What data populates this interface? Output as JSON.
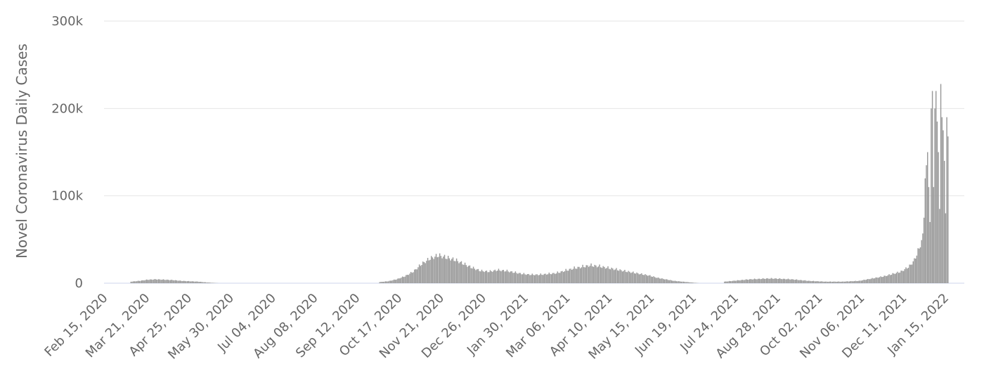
{
  "chart_data": {
    "type": "bar",
    "title": "",
    "ylabel": "Novel Coronavirus Daily Cases",
    "xlabel": "",
    "ylim": [
      0,
      300000
    ],
    "y_ticks": [
      {
        "value": 0,
        "label": "0"
      },
      {
        "value": 100000,
        "label": "100k"
      },
      {
        "value": 200000,
        "label": "200k"
      },
      {
        "value": 300000,
        "label": "300k"
      }
    ],
    "x_ticks": [
      "Feb 15, 2020",
      "Mar 21, 2020",
      "Apr 25, 2020",
      "May 30, 2020",
      "Jul 04, 2020",
      "Aug 08, 2020",
      "Sep 12, 2020",
      "Oct 17, 2020",
      "Nov 21, 2020",
      "Dec 26, 2020",
      "Jan 30, 2021",
      "Mar 06, 2021",
      "Apr 10, 2021",
      "May 15, 2021",
      "Jun 19, 2021",
      "Jul 24, 2021",
      "Aug 28, 2021",
      "Oct 02, 2021",
      "Nov 06, 2021",
      "Dec 11, 2021",
      "Jan 15, 2022"
    ],
    "x_start": "2020-02-15",
    "x_end": "2022-01-31",
    "grid": true,
    "color": "#999999",
    "series": [
      {
        "points": [
          [
            "2020-03-08",
            2000
          ],
          [
            "2020-03-15",
            3000
          ],
          [
            "2020-03-22",
            4500
          ],
          [
            "2020-03-29",
            5000
          ],
          [
            "2020-04-05",
            4500
          ],
          [
            "2020-04-12",
            4000
          ],
          [
            "2020-04-19",
            3000
          ],
          [
            "2020-04-26",
            2500
          ],
          [
            "2020-05-03",
            2000
          ],
          [
            "2020-05-10",
            1000
          ],
          [
            "2020-05-20",
            0
          ],
          [
            "2020-09-30",
            0
          ],
          [
            "2020-10-01",
            1500
          ],
          [
            "2020-10-08",
            2500
          ],
          [
            "2020-10-15",
            5000
          ],
          [
            "2020-10-22",
            9000
          ],
          [
            "2020-10-29",
            15000
          ],
          [
            "2020-11-05",
            25000
          ],
          [
            "2020-11-12",
            32000
          ],
          [
            "2020-11-19",
            36000
          ],
          [
            "2020-11-26",
            33000
          ],
          [
            "2020-12-03",
            30000
          ],
          [
            "2020-12-10",
            25000
          ],
          [
            "2020-12-17",
            20000
          ],
          [
            "2020-12-24",
            16000
          ],
          [
            "2020-12-31",
            15000
          ],
          [
            "2021-01-07",
            17000
          ],
          [
            "2021-01-14",
            16000
          ],
          [
            "2021-01-21",
            14000
          ],
          [
            "2021-01-28",
            12000
          ],
          [
            "2021-02-04",
            11000
          ],
          [
            "2021-02-11",
            11000
          ],
          [
            "2021-02-18",
            12000
          ],
          [
            "2021-02-25",
            13000
          ],
          [
            "2021-03-04",
            16000
          ],
          [
            "2021-03-11",
            19000
          ],
          [
            "2021-03-18",
            21000
          ],
          [
            "2021-03-25",
            23000
          ],
          [
            "2021-04-01",
            22000
          ],
          [
            "2021-04-08",
            20000
          ],
          [
            "2021-04-15",
            18000
          ],
          [
            "2021-04-22",
            16000
          ],
          [
            "2021-04-29",
            14000
          ],
          [
            "2021-05-06",
            12000
          ],
          [
            "2021-05-13",
            10000
          ],
          [
            "2021-05-20",
            7000
          ],
          [
            "2021-05-27",
            5000
          ],
          [
            "2021-06-03",
            3000
          ],
          [
            "2021-06-10",
            2000
          ],
          [
            "2021-06-17",
            1000
          ],
          [
            "2021-06-24",
            0
          ],
          [
            "2021-07-14",
            0
          ],
          [
            "2021-07-15",
            2000
          ],
          [
            "2021-07-22",
            3000
          ],
          [
            "2021-07-29",
            4000
          ],
          [
            "2021-08-05",
            5000
          ],
          [
            "2021-08-12",
            5500
          ],
          [
            "2021-08-19",
            6000
          ],
          [
            "2021-08-26",
            6000
          ],
          [
            "2021-09-02",
            5500
          ],
          [
            "2021-09-09",
            5000
          ],
          [
            "2021-09-16",
            4000
          ],
          [
            "2021-09-23",
            3000
          ],
          [
            "2021-09-30",
            2500
          ],
          [
            "2021-10-07",
            2000
          ],
          [
            "2021-10-14",
            2000
          ],
          [
            "2021-10-21",
            2000
          ],
          [
            "2021-10-28",
            2500
          ],
          [
            "2021-11-04",
            3000
          ],
          [
            "2021-11-11",
            5000
          ],
          [
            "2021-11-18",
            7000
          ],
          [
            "2021-11-25",
            9000
          ],
          [
            "2021-12-02",
            12000
          ],
          [
            "2021-12-09",
            15000
          ],
          [
            "2021-12-16",
            22000
          ],
          [
            "2021-12-20",
            30000
          ],
          [
            "2021-12-24",
            45000
          ],
          [
            "2021-12-27",
            60000
          ],
          [
            "2021-12-29",
            120000
          ],
          [
            "2021-12-31",
            150000
          ],
          [
            "2022-01-02",
            70000
          ],
          [
            "2022-01-03",
            200000
          ],
          [
            "2022-01-04",
            220000
          ],
          [
            "2022-01-05",
            110000
          ],
          [
            "2022-01-06",
            200000
          ],
          [
            "2022-01-07",
            220000
          ],
          [
            "2022-01-08",
            185000
          ],
          [
            "2022-01-09",
            150000
          ],
          [
            "2022-01-10",
            85000
          ],
          [
            "2022-01-11",
            228000
          ],
          [
            "2022-01-12",
            190000
          ],
          [
            "2022-01-13",
            175000
          ],
          [
            "2022-01-14",
            140000
          ],
          [
            "2022-01-15",
            80000
          ],
          [
            "2022-01-16",
            190000
          ],
          [
            "2022-01-17",
            168000
          ]
        ]
      }
    ]
  }
}
